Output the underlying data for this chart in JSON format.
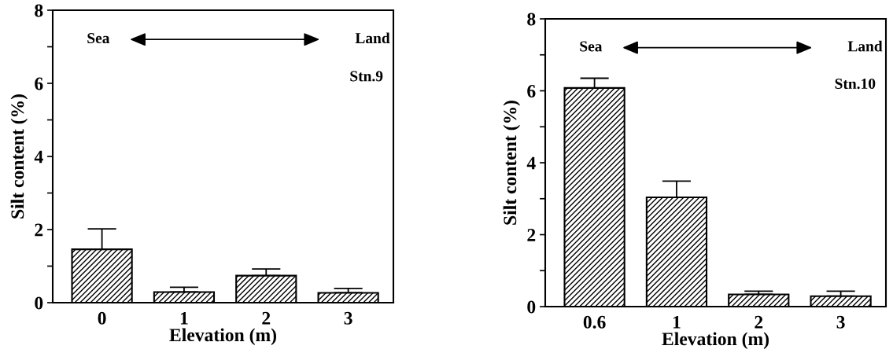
{
  "chart_data": [
    {
      "type": "bar",
      "xlabel": "Elevation (m)",
      "ylabel": "Silt content (%)",
      "categories": [
        "0",
        "1",
        "2",
        "3"
      ],
      "values": [
        1.46,
        0.29,
        0.74,
        0.27
      ],
      "errors": [
        [
          1.46,
          2.02
        ],
        [
          0.29,
          0.42
        ],
        [
          0.74,
          0.92
        ],
        [
          0.27,
          0.39
        ]
      ],
      "color": "#000000",
      "ylim": [
        0,
        8
      ],
      "yticks": [
        0,
        {
          "value": 1,
          "label": null
        },
        2,
        {
          "value": 3,
          "label": null
        },
        4,
        {
          "value": 5,
          "label": null
        },
        6,
        {
          "value": 7,
          "label": null
        },
        8
      ],
      "annotations": [
        "Sea",
        "Land",
        "Stn.9"
      ]
    },
    {
      "type": "bar",
      "xlabel": "Elevation (m)",
      "ylabel": "Silt content (%)",
      "categories": [
        "0.6",
        "1",
        "2",
        "3"
      ],
      "values": [
        6.08,
        3.04,
        0.34,
        0.29
      ],
      "errors": [
        [
          6.08,
          6.35
        ],
        [
          3.04,
          3.49
        ],
        [
          0.34,
          0.43
        ],
        [
          0.29,
          0.43
        ]
      ],
      "color": "#000000",
      "ylim": [
        0,
        8
      ],
      "yticks": [
        0,
        {
          "value": 1,
          "label": null
        },
        2,
        {
          "value": 3,
          "label": null
        },
        4,
        {
          "value": 5,
          "label": null
        },
        6,
        {
          "value": 7,
          "label": null
        },
        8
      ],
      "annotations": [
        "Sea",
        "Land",
        "Stn.10"
      ]
    }
  ]
}
